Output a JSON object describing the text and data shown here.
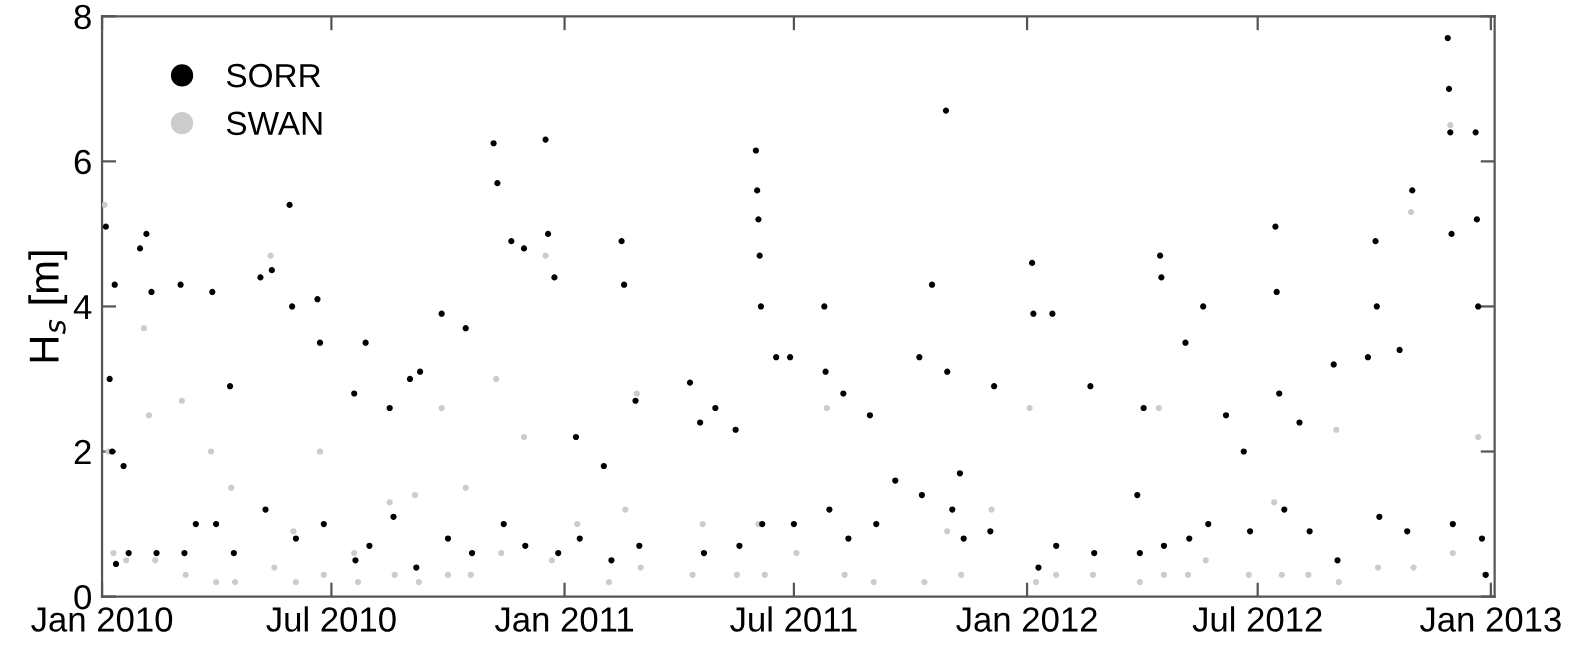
{
  "chart_data": {
    "type": "scatter",
    "ylabel": "H$_{s}$ [m]",
    "legend": "top left",
    "marker": "circle",
    "grid": false,
    "xlim": [
      "2010-01-01",
      "2013-01-04"
    ],
    "ylim": [
      0,
      8
    ],
    "yticks": [
      0,
      2,
      4,
      6,
      8
    ],
    "xticks": [
      {
        "value": "2010-01-01",
        "label": "Jan 2010"
      },
      {
        "value": "2010-07-01",
        "label": "Jul 2010"
      },
      {
        "value": "2011-01-01",
        "label": "Jan 2011"
      },
      {
        "value": "2011-07-01",
        "label": "Jul 2011"
      },
      {
        "value": "2012-01-01",
        "label": "Jan 2012"
      },
      {
        "value": "2012-07-01",
        "label": "Jul 2012"
      },
      {
        "value": "2013-01-01",
        "label": "Jan 2013"
      }
    ],
    "series": [
      {
        "name": "SORR",
        "color": "#000000",
        "x": [
          "2010-01-04",
          "2010-01-07",
          "2010-01-09",
          "2010-01-11",
          "2010-01-12",
          "2010-01-18",
          "2010-01-22",
          "2010-01-31",
          "2010-02-05",
          "2010-02-09",
          "2010-02-13",
          "2010-03-04",
          "2010-03-07",
          "2010-03-16",
          "2010-03-29",
          "2010-04-01",
          "2010-04-12",
          "2010-04-15",
          "2010-05-06",
          "2010-05-10",
          "2010-05-15",
          "2010-05-29",
          "2010-05-31",
          "2010-06-03",
          "2010-06-20",
          "2010-06-22",
          "2010-06-25",
          "2010-07-19",
          "2010-07-20",
          "2010-07-28",
          "2010-07-31",
          "2010-08-16",
          "2010-08-19",
          "2010-09-01",
          "2010-09-06",
          "2010-09-09",
          "2010-09-26",
          "2010-10-01",
          "2010-10-15",
          "2010-10-20",
          "2010-11-06",
          "2010-11-09",
          "2010-11-14",
          "2010-11-20",
          "2010-11-30",
          "2010-12-01",
          "2010-12-17",
          "2010-12-19",
          "2010-12-24",
          "2010-12-27",
          "2011-01-10",
          "2011-01-13",
          "2011-02-01",
          "2011-02-07",
          "2011-02-15",
          "2011-02-17",
          "2011-02-26",
          "2011-03-01",
          "2011-04-10",
          "2011-04-18",
          "2011-04-21",
          "2011-04-30",
          "2011-05-16",
          "2011-05-19",
          "2011-06-01",
          "2011-06-02",
          "2011-06-03",
          "2011-06-04",
          "2011-06-05",
          "2011-06-06",
          "2011-06-17",
          "2011-06-28",
          "2011-07-01",
          "2011-07-25",
          "2011-07-26",
          "2011-07-29",
          "2011-08-09",
          "2011-08-13",
          "2011-08-30",
          "2011-09-04",
          "2011-09-19",
          "2011-10-08",
          "2011-10-10",
          "2011-10-18",
          "2011-10-29",
          "2011-10-30",
          "2011-11-03",
          "2011-11-09",
          "2011-11-12",
          "2011-12-03",
          "2011-12-06",
          "2012-01-05",
          "2012-01-06",
          "2012-01-10",
          "2012-01-21",
          "2012-01-24",
          "2012-02-20",
          "2012-02-23",
          "2012-03-28",
          "2012-03-30",
          "2012-04-02",
          "2012-04-15",
          "2012-04-16",
          "2012-04-18",
          "2012-05-05",
          "2012-05-08",
          "2012-05-19",
          "2012-05-23",
          "2012-06-06",
          "2012-06-20",
          "2012-06-25",
          "2012-07-15",
          "2012-07-16",
          "2012-07-18",
          "2012-07-22",
          "2012-08-03",
          "2012-08-11",
          "2012-08-30",
          "2012-09-02",
          "2012-09-26",
          "2012-10-02",
          "2012-10-03",
          "2012-10-05",
          "2012-10-21",
          "2012-10-27",
          "2012-10-31",
          "2012-11-28",
          "2012-11-29",
          "2012-11-30",
          "2012-12-01",
          "2012-12-02",
          "2012-12-20",
          "2012-12-21",
          "2012-12-22",
          "2012-12-25",
          "2012-12-28"
        ],
        "values": [
          5.1,
          3.0,
          2.0,
          4.3,
          0.45,
          1.8,
          0.6,
          4.8,
          5.0,
          4.2,
          0.6,
          4.3,
          0.6,
          1.0,
          4.2,
          1.0,
          2.9,
          0.6,
          4.4,
          1.2,
          4.5,
          5.4,
          4.0,
          0.8,
          4.1,
          3.5,
          1.0,
          2.8,
          0.5,
          3.5,
          0.7,
          2.6,
          1.1,
          3.0,
          0.4,
          3.1,
          3.9,
          0.8,
          3.7,
          0.6,
          6.25,
          5.7,
          1.0,
          4.9,
          4.8,
          0.7,
          6.3,
          5.0,
          4.4,
          0.6,
          2.2,
          0.8,
          1.8,
          0.5,
          4.9,
          4.3,
          2.7,
          0.7,
          2.95,
          2.4,
          0.6,
          2.6,
          2.3,
          0.7,
          6.15,
          5.6,
          5.2,
          4.7,
          4.0,
          1.0,
          3.3,
          3.3,
          1.0,
          4.0,
          3.1,
          1.2,
          2.8,
          0.8,
          2.5,
          1.0,
          1.6,
          3.3,
          1.4,
          4.3,
          6.7,
          3.1,
          1.2,
          1.7,
          0.8,
          0.9,
          2.9,
          4.6,
          3.9,
          0.4,
          3.9,
          0.7,
          2.9,
          0.6,
          1.4,
          0.6,
          2.6,
          4.7,
          4.4,
          0.7,
          3.5,
          0.8,
          4.0,
          1.0,
          2.5,
          2.0,
          0.9,
          5.1,
          4.2,
          2.8,
          1.2,
          2.4,
          0.9,
          3.2,
          0.5,
          3.3,
          4.9,
          4.0,
          1.1,
          3.4,
          0.9,
          5.6,
          7.7,
          7.0,
          6.4,
          5.0,
          1.0,
          6.4,
          5.2,
          4.0,
          0.8,
          0.3
        ]
      },
      {
        "name": "SWAN",
        "color": "#cccccc",
        "x": [
          "2010-01-03",
          "2010-01-06",
          "2010-01-10",
          "2010-01-20",
          "2010-02-03",
          "2010-02-07",
          "2010-02-12",
          "2010-03-05",
          "2010-03-08",
          "2010-03-28",
          "2010-04-01",
          "2010-04-13",
          "2010-04-16",
          "2010-05-14",
          "2010-05-17",
          "2010-06-01",
          "2010-06-03",
          "2010-06-22",
          "2010-06-25",
          "2010-07-19",
          "2010-07-22",
          "2010-08-16",
          "2010-08-20",
          "2010-09-05",
          "2010-09-08",
          "2010-09-26",
          "2010-10-01",
          "2010-10-15",
          "2010-10-19",
          "2010-11-08",
          "2010-11-12",
          "2010-11-30",
          "2010-12-17",
          "2010-12-22",
          "2011-01-11",
          "2011-02-05",
          "2011-02-18",
          "2011-02-27",
          "2011-03-02",
          "2011-04-12",
          "2011-04-20",
          "2011-05-17",
          "2011-06-03",
          "2011-06-08",
          "2011-07-03",
          "2011-07-27",
          "2011-08-10",
          "2011-09-02",
          "2011-10-12",
          "2011-10-30",
          "2011-11-10",
          "2011-12-04",
          "2012-01-03",
          "2012-01-08",
          "2012-01-24",
          "2012-02-22",
          "2012-03-30",
          "2012-04-14",
          "2012-04-18",
          "2012-05-07",
          "2012-05-21",
          "2012-06-24",
          "2012-07-14",
          "2012-07-20",
          "2012-08-10",
          "2012-09-01",
          "2012-09-03",
          "2012-10-04",
          "2012-10-30",
          "2012-11-01",
          "2012-11-30",
          "2012-12-02",
          "2012-12-22",
          "2012-12-27"
        ],
        "values": [
          5.4,
          2.0,
          0.6,
          0.5,
          3.7,
          2.5,
          0.5,
          2.7,
          0.3,
          2.0,
          0.2,
          1.5,
          0.2,
          4.7,
          0.4,
          0.9,
          0.2,
          2.0,
          0.3,
          0.6,
          0.2,
          1.3,
          0.3,
          1.4,
          0.2,
          2.6,
          0.3,
          1.5,
          0.3,
          3.0,
          0.6,
          2.2,
          4.7,
          0.5,
          1.0,
          0.2,
          1.2,
          2.8,
          0.4,
          0.3,
          1.0,
          0.3,
          1.0,
          0.3,
          0.6,
          2.6,
          0.3,
          0.2,
          0.2,
          0.9,
          0.3,
          1.2,
          2.6,
          0.2,
          0.3,
          0.3,
          0.2,
          2.6,
          0.3,
          0.3,
          0.5,
          0.3,
          1.3,
          0.3,
          0.3,
          2.3,
          0.2,
          0.4,
          5.3,
          0.4,
          6.5,
          0.6,
          2.2,
          0.3
        ]
      }
    ]
  }
}
